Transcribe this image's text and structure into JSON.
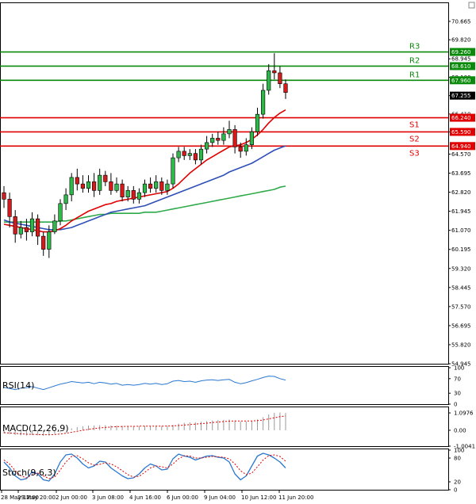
{
  "chart_data": [
    {
      "type": "candlestick",
      "panel": "price",
      "y_ticks": [
        "70.665",
        "69.820",
        "68.945",
        "68.100",
        "67.255",
        "66.410",
        "65.590",
        "64.570",
        "63.695",
        "62.820",
        "61.945",
        "61.070",
        "60.195",
        "59.320",
        "58.445",
        "57.570",
        "56.695",
        "55.820",
        "54.945"
      ],
      "ylim": [
        54.945,
        71.5
      ],
      "x_ticks": [
        "28 May 12:00",
        "29 May 20:00",
        "2 Jun 00:00",
        "3 Jun 08:00",
        "4 Jun 16:00",
        "6 Jun 00:00",
        "9 Jun 04:00",
        "10 Jun 12:00",
        "11 Jun 20:00"
      ],
      "levels": [
        {
          "name": "R3",
          "value": 69.26,
          "badge": "69.260",
          "color": "#0a8a0a"
        },
        {
          "name": "R2",
          "value": 68.61,
          "badge": "68.610",
          "color": "#0a8a0a"
        },
        {
          "name": "R1",
          "value": 67.96,
          "badge": "67.960",
          "color": "#0a8a0a"
        },
        {
          "name": "S1",
          "value": 66.24,
          "badge": "66.240",
          "color": "#e00000"
        },
        {
          "name": "S2",
          "value": 65.59,
          "badge": "65.590",
          "color": "#e00000"
        },
        {
          "name": "S3",
          "value": 64.94,
          "badge": "64.940",
          "color": "#e00000"
        }
      ],
      "current_price": {
        "value": 67.255,
        "badge": "67.255"
      },
      "candles": [
        [
          62.8,
          62.5,
          63.1,
          62.1
        ],
        [
          62.5,
          61.7,
          62.8,
          61.2
        ],
        [
          61.7,
          60.9,
          62.0,
          60.5
        ],
        [
          60.9,
          61.2,
          61.5,
          60.7
        ],
        [
          61.2,
          61.0,
          61.6,
          60.6
        ],
        [
          61.0,
          61.6,
          61.9,
          60.8
        ],
        [
          61.6,
          60.8,
          61.8,
          60.4
        ],
        [
          60.8,
          60.2,
          61.0,
          59.9
        ],
        [
          60.2,
          61.0,
          61.3,
          59.8
        ],
        [
          61.0,
          61.5,
          61.8,
          60.9
        ],
        [
          61.5,
          62.3,
          62.5,
          61.3
        ],
        [
          62.3,
          62.7,
          63.0,
          62.0
        ],
        [
          62.7,
          63.5,
          63.7,
          62.4
        ],
        [
          63.5,
          63.2,
          63.9,
          62.9
        ],
        [
          63.2,
          63.0,
          63.6,
          62.8
        ],
        [
          63.0,
          63.3,
          63.6,
          62.8
        ],
        [
          63.3,
          62.9,
          63.7,
          62.6
        ],
        [
          62.9,
          63.6,
          63.9,
          62.7
        ],
        [
          63.6,
          63.3,
          63.8,
          63.1
        ],
        [
          63.3,
          62.9,
          63.7,
          62.7
        ],
        [
          62.9,
          63.2,
          63.5,
          62.8
        ],
        [
          63.2,
          62.6,
          63.4,
          62.4
        ],
        [
          62.6,
          62.9,
          63.1,
          62.4
        ],
        [
          62.9,
          62.5,
          63.1,
          62.3
        ],
        [
          62.5,
          62.8,
          63.0,
          62.3
        ],
        [
          62.8,
          63.2,
          63.4,
          62.6
        ],
        [
          63.2,
          63.0,
          63.5,
          62.8
        ],
        [
          63.0,
          63.3,
          63.6,
          62.8
        ],
        [
          63.3,
          62.9,
          63.5,
          62.7
        ],
        [
          62.9,
          63.2,
          63.4,
          62.7
        ],
        [
          63.2,
          64.4,
          64.6,
          63.0
        ],
        [
          64.4,
          64.7,
          64.9,
          64.2
        ],
        [
          64.7,
          64.5,
          64.9,
          64.3
        ],
        [
          64.5,
          64.6,
          64.8,
          64.3
        ],
        [
          64.6,
          64.3,
          64.8,
          64.1
        ],
        [
          64.3,
          64.8,
          65.0,
          64.1
        ],
        [
          64.8,
          65.1,
          65.4,
          64.6
        ],
        [
          65.1,
          65.3,
          65.5,
          64.9
        ],
        [
          65.3,
          65.2,
          65.6,
          65.0
        ],
        [
          65.2,
          65.5,
          65.8,
          65.0
        ],
        [
          65.5,
          65.7,
          66.1,
          65.3
        ],
        [
          65.7,
          64.9,
          65.9,
          64.6
        ],
        [
          64.9,
          64.7,
          65.1,
          64.4
        ],
        [
          64.7,
          65.0,
          65.3,
          64.5
        ],
        [
          65.0,
          65.6,
          65.8,
          64.8
        ],
        [
          65.6,
          66.4,
          66.7,
          65.4
        ],
        [
          66.4,
          67.5,
          67.8,
          66.2
        ],
        [
          67.5,
          68.4,
          68.7,
          67.3
        ],
        [
          68.4,
          68.3,
          69.2,
          68.0
        ],
        [
          68.3,
          67.8,
          68.6,
          67.6
        ],
        [
          67.8,
          67.4,
          68.0,
          67.1
        ]
      ],
      "ma_red": [
        61.35,
        61.3,
        61.25,
        61.2,
        61.15,
        61.1,
        61.05,
        61.0,
        61.0,
        61.05,
        61.15,
        61.3,
        61.5,
        61.65,
        61.8,
        61.95,
        62.05,
        62.15,
        62.25,
        62.3,
        62.4,
        62.45,
        62.5,
        62.55,
        62.6,
        62.65,
        62.7,
        62.75,
        62.8,
        62.85,
        63.0,
        63.2,
        63.45,
        63.7,
        63.9,
        64.1,
        64.3,
        64.45,
        64.6,
        64.75,
        64.9,
        64.95,
        65.0,
        65.1,
        65.25,
        65.45,
        65.7,
        66.0,
        66.25,
        66.45,
        66.6
      ],
      "ma_blue": [
        61.55,
        61.45,
        61.4,
        61.35,
        61.3,
        61.25,
        61.2,
        61.15,
        61.1,
        61.1,
        61.1,
        61.15,
        61.2,
        61.3,
        61.4,
        61.5,
        61.6,
        61.7,
        61.8,
        61.9,
        61.95,
        62.0,
        62.05,
        62.1,
        62.15,
        62.2,
        62.3,
        62.4,
        62.5,
        62.6,
        62.7,
        62.8,
        62.9,
        63.0,
        63.1,
        63.2,
        63.3,
        63.4,
        63.5,
        63.6,
        63.75,
        63.85,
        63.95,
        64.05,
        64.15,
        64.3,
        64.45,
        64.6,
        64.75,
        64.85,
        64.95
      ],
      "ma_green": [
        61.45,
        61.45,
        61.45,
        61.45,
        61.45,
        61.45,
        61.45,
        61.45,
        61.45,
        61.45,
        61.5,
        61.5,
        61.55,
        61.6,
        61.65,
        61.7,
        61.75,
        61.8,
        61.8,
        61.85,
        61.85,
        61.85,
        61.85,
        61.85,
        61.85,
        61.9,
        61.9,
        61.9,
        61.95,
        62.0,
        62.05,
        62.1,
        62.15,
        62.2,
        62.25,
        62.3,
        62.35,
        62.4,
        62.45,
        62.5,
        62.55,
        62.6,
        62.65,
        62.7,
        62.75,
        62.8,
        62.85,
        62.9,
        62.95,
        63.05,
        63.1
      ]
    },
    {
      "type": "line",
      "panel": "rsi",
      "label": "RSI(14)",
      "y_ticks": [
        "100",
        "70",
        "30",
        "0"
      ],
      "ylim": [
        0,
        100
      ],
      "values": [
        46,
        43,
        40,
        44,
        45,
        48,
        44,
        40,
        45,
        50,
        55,
        58,
        62,
        60,
        58,
        60,
        56,
        60,
        58,
        55,
        57,
        52,
        54,
        52,
        54,
        57,
        55,
        57,
        54,
        56,
        63,
        65,
        62,
        63,
        60,
        64,
        66,
        67,
        65,
        67,
        68,
        60,
        56,
        59,
        64,
        68,
        73,
        77,
        76,
        70,
        66
      ]
    },
    {
      "type": "bar",
      "panel": "macd",
      "label": "MACD(12,26,9)",
      "y_ticks": [
        "1.0976",
        "0.00",
        "-1.0041"
      ],
      "ylim": [
        -1.0041,
        1.4
      ],
      "values": [
        -0.2,
        -0.25,
        -0.3,
        -0.32,
        -0.33,
        -0.3,
        -0.32,
        -0.35,
        -0.3,
        -0.22,
        -0.12,
        0.0,
        0.12,
        0.2,
        0.25,
        0.3,
        0.3,
        0.32,
        0.32,
        0.3,
        0.3,
        0.28,
        0.28,
        0.26,
        0.26,
        0.27,
        0.27,
        0.28,
        0.27,
        0.27,
        0.35,
        0.42,
        0.47,
        0.5,
        0.5,
        0.54,
        0.58,
        0.62,
        0.64,
        0.66,
        0.68,
        0.62,
        0.56,
        0.56,
        0.6,
        0.68,
        0.82,
        1.0,
        1.1,
        1.12,
        1.1
      ],
      "signal": [
        -0.15,
        -0.18,
        -0.2,
        -0.23,
        -0.25,
        -0.26,
        -0.27,
        -0.28,
        -0.29,
        -0.27,
        -0.24,
        -0.19,
        -0.13,
        -0.06,
        0.0,
        0.06,
        0.11,
        0.15,
        0.18,
        0.21,
        0.23,
        0.24,
        0.25,
        0.25,
        0.26,
        0.26,
        0.26,
        0.26,
        0.26,
        0.27,
        0.28,
        0.3,
        0.33,
        0.36,
        0.39,
        0.42,
        0.45,
        0.49,
        0.52,
        0.55,
        0.58,
        0.59,
        0.59,
        0.59,
        0.59,
        0.61,
        0.65,
        0.72,
        0.79,
        0.86,
        0.9
      ]
    },
    {
      "type": "line",
      "panel": "stoch",
      "label": "Stoch(9,6,3)",
      "y_ticks": [
        "100",
        "80",
        "20",
        "0"
      ],
      "ylim": [
        0,
        100
      ],
      "k": [
        70,
        55,
        35,
        25,
        28,
        45,
        40,
        25,
        22,
        40,
        70,
        88,
        90,
        80,
        65,
        55,
        60,
        72,
        70,
        55,
        45,
        35,
        28,
        30,
        40,
        55,
        65,
        60,
        50,
        52,
        78,
        90,
        85,
        82,
        75,
        80,
        85,
        86,
        82,
        80,
        70,
        40,
        25,
        35,
        60,
        85,
        92,
        88,
        80,
        70,
        55
      ],
      "d": [
        75,
        65,
        48,
        35,
        30,
        38,
        42,
        35,
        28,
        32,
        50,
        70,
        84,
        86,
        78,
        68,
        62,
        64,
        68,
        65,
        58,
        48,
        38,
        32,
        34,
        44,
        55,
        60,
        58,
        55,
        65,
        78,
        86,
        85,
        80,
        80,
        82,
        84,
        83,
        82,
        78,
        65,
        48,
        38,
        42,
        58,
        75,
        86,
        88,
        84,
        72
      ]
    }
  ]
}
